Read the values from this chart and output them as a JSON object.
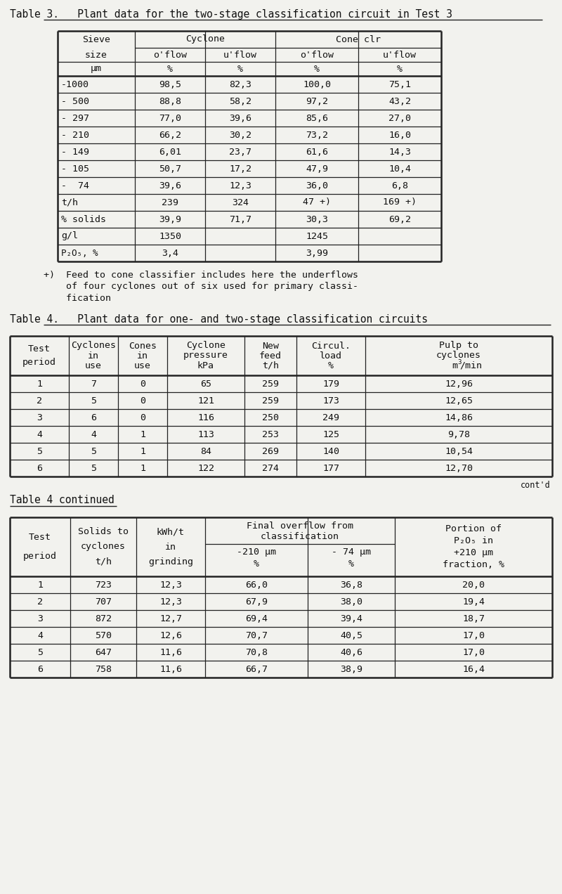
{
  "table3_title": "Table 3.   Plant data for the two-stage classification circuit in Test 3",
  "table3_data": [
    [
      "-1000",
      "98,5",
      "82,3",
      "100,0",
      "75,1"
    ],
    [
      "- 500",
      "88,8",
      "58,2",
      "97,2",
      "43,2"
    ],
    [
      "- 297",
      "77,0",
      "39,6",
      "85,6",
      "27,0"
    ],
    [
      "- 210",
      "66,2",
      "30,2",
      "73,2",
      "16,0"
    ],
    [
      "- 149",
      "6,01",
      "23,7",
      "61,6",
      "14,3"
    ],
    [
      "- 105",
      "50,7",
      "17,2",
      "47,9",
      "10,4"
    ],
    [
      "-  74",
      "39,6",
      "12,3",
      "36,0",
      "6,8"
    ],
    [
      "t/h",
      "239",
      "324",
      "47 +)",
      "169 +)"
    ],
    [
      "% solids",
      "39,9",
      "71,7",
      "30,3",
      "69,2"
    ],
    [
      "g/l",
      "1350",
      "",
      "1245",
      ""
    ],
    [
      "P₂O₅, %",
      "3,4",
      "",
      "3,99",
      ""
    ]
  ],
  "table3_footnote_line1": "+)  Feed to cone classifier includes here the underflows",
  "table3_footnote_line2": "    of four cyclones out of six used for primary classi-",
  "table3_footnote_line3": "    fication",
  "table4_title": "Table 4.   Plant data for one- and two-stage classification circuits",
  "table4_data": [
    [
      "1",
      "7",
      "0",
      "65",
      "259",
      "179",
      "12,96"
    ],
    [
      "2",
      "5",
      "0",
      "121",
      "259",
      "173",
      "12,65"
    ],
    [
      "3",
      "6",
      "0",
      "116",
      "250",
      "249",
      "14,86"
    ],
    [
      "4",
      "4",
      "1",
      "113",
      "253",
      "125",
      "9,78"
    ],
    [
      "5",
      "5",
      "1",
      "84",
      "269",
      "140",
      "10,54"
    ],
    [
      "6",
      "5",
      "1",
      "122",
      "274",
      "177",
      "12,70"
    ]
  ],
  "table4cont_title": "Table 4 continued",
  "table4cont_data": [
    [
      "1",
      "723",
      "12,3",
      "66,0",
      "36,8",
      "20,0"
    ],
    [
      "2",
      "707",
      "12,3",
      "67,9",
      "38,0",
      "19,4"
    ],
    [
      "3",
      "872",
      "12,7",
      "69,4",
      "39,4",
      "18,7"
    ],
    [
      "4",
      "570",
      "12,6",
      "70,7",
      "40,5",
      "17,0"
    ],
    [
      "5",
      "647",
      "11,6",
      "70,8",
      "40,6",
      "17,0"
    ],
    [
      "6",
      "758",
      "11,6",
      "66,7",
      "38,9",
      "16,4"
    ]
  ],
  "bg_color": "#f2f2ee",
  "text_color": "#111111",
  "line_color": "#222222",
  "font_size": 9.5,
  "title_font_size": 10.5
}
